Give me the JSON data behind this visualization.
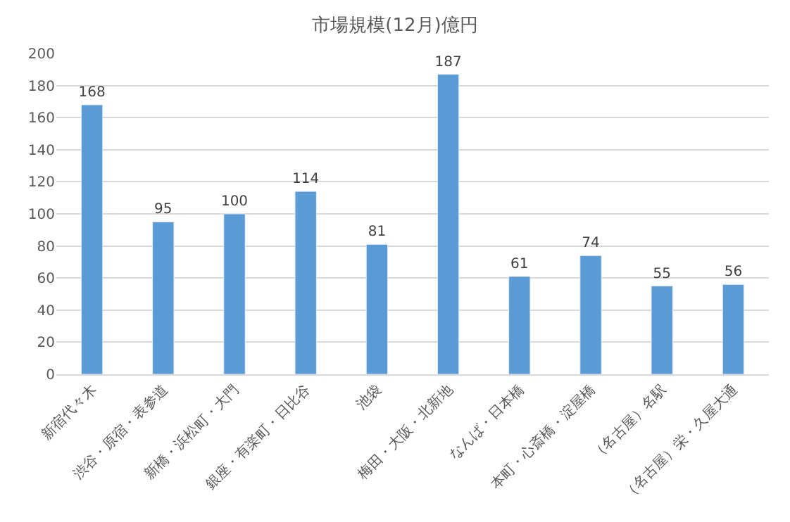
{
  "chart_data": {
    "type": "bar",
    "title": "市場規模(12月)億円",
    "categories": [
      "新宿代々木",
      "渋谷・原宿・表参道",
      "新橋・浜松町・大門",
      "銀座・有楽町・日比谷",
      "池袋",
      "梅田・大阪・北新地",
      "なんば・日本橋",
      "本町・心斎橋・淀屋橋",
      "（名古屋）名駅",
      "（名古屋）栄・久屋大通"
    ],
    "values": [
      168,
      95,
      100,
      114,
      81,
      187,
      61,
      74,
      55,
      56
    ],
    "color": "#5b9bd5",
    "data_labels": true,
    "grid": "y",
    "ylim": [
      0,
      200
    ],
    "yticks": [
      0,
      20,
      40,
      60,
      80,
      100,
      120,
      140,
      160,
      180,
      200
    ]
  }
}
